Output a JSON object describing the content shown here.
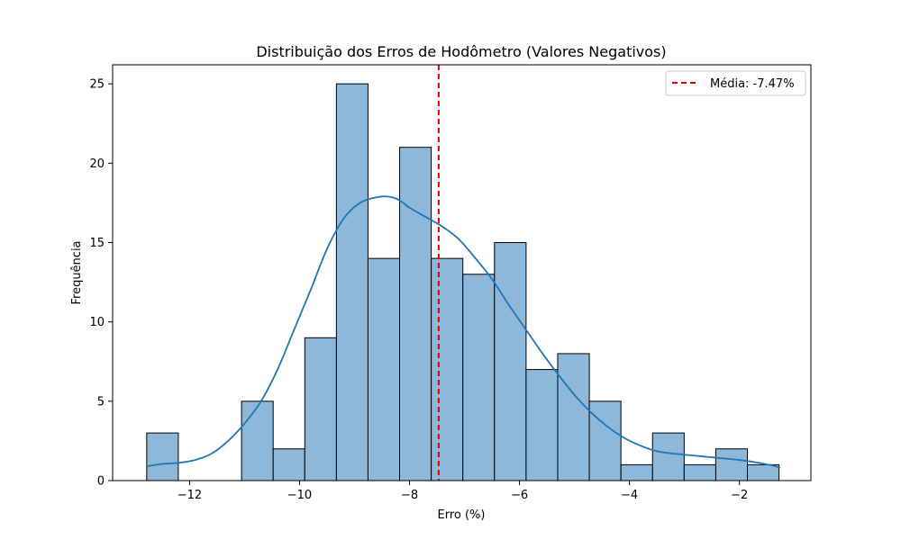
{
  "chart_data": {
    "type": "bar",
    "title": "Distribuição dos Erros de Hodômetro (Valores Negativos)",
    "xlabel": "Erro (%)",
    "ylabel": "Frequência",
    "xlim": [
      -13.4,
      -0.7
    ],
    "ylim": [
      0,
      26.2
    ],
    "xticks": [
      -12,
      -10,
      -8,
      -6,
      -4,
      -2
    ],
    "xtick_labels": [
      "−12",
      "−10",
      "−8",
      "−6",
      "−4",
      "−2"
    ],
    "yticks": [
      0,
      5,
      10,
      15,
      20,
      25
    ],
    "ytick_labels": [
      "0",
      "5",
      "10",
      "15",
      "20",
      "25"
    ],
    "bins": {
      "start": -12.78,
      "width": 0.575,
      "counts": [
        3,
        0,
        0,
        5,
        2,
        9,
        25,
        14,
        21,
        14,
        13,
        15,
        7,
        8,
        5,
        1,
        3,
        1,
        2,
        1
      ]
    },
    "kde": {
      "x": [
        -12.78,
        -12.5,
        -12.2,
        -11.9,
        -11.6,
        -11.3,
        -11.0,
        -10.7,
        -10.4,
        -10.1,
        -9.8,
        -9.5,
        -9.2,
        -8.9,
        -8.6,
        -8.4,
        -8.2,
        -8.0,
        -7.7,
        -7.4,
        -7.1,
        -6.8,
        -6.5,
        -6.2,
        -5.9,
        -5.6,
        -5.3,
        -5.0,
        -4.7,
        -4.4,
        -4.1,
        -3.8,
        -3.5,
        -3.2,
        -2.9,
        -2.6,
        -2.3,
        -2.0,
        -1.7,
        -1.4,
        -1.26
      ],
      "y": [
        0.9,
        1.05,
        1.12,
        1.3,
        1.7,
        2.5,
        3.6,
        5.0,
        7.0,
        9.5,
        12.0,
        14.6,
        16.5,
        17.5,
        17.85,
        17.9,
        17.7,
        17.2,
        16.6,
        16.0,
        15.2,
        14.0,
        12.7,
        11.1,
        9.6,
        8.1,
        6.7,
        5.4,
        4.3,
        3.4,
        2.7,
        2.2,
        1.85,
        1.7,
        1.6,
        1.5,
        1.4,
        1.3,
        1.15,
        0.95,
        0.8
      ]
    },
    "mean_line": {
      "x": -7.47,
      "label": "Média: -7.47%"
    },
    "legend_position": "top-right",
    "grid": false,
    "colors": {
      "bar_fill": "#8db8da",
      "bar_edge": "#000000",
      "kde": "#1f77b4",
      "mean": "#e00000"
    }
  }
}
